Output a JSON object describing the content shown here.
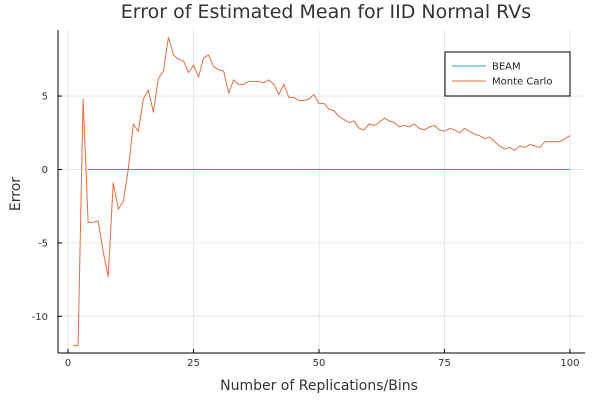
{
  "chart_data": {
    "type": "line",
    "title": "Error of Estimated Mean for IID Normal RVs",
    "xlabel": "Number of Replications/Bins",
    "ylabel": "Error",
    "xlim": [
      -2,
      103
    ],
    "ylim": [
      -12.5,
      9.5
    ],
    "xticks": [
      0,
      25,
      50,
      75,
      100
    ],
    "yticks": [
      -10,
      -5,
      0,
      5
    ],
    "grid": true,
    "legend_position": "top-right",
    "series": [
      {
        "name": "BEAM",
        "color": "#26a5b8",
        "x": [
          4,
          100
        ],
        "values": [
          0,
          0
        ]
      },
      {
        "name": "Monte Carlo",
        "color": "#e26f46",
        "x": [
          1,
          2,
          3,
          4,
          5,
          6,
          7,
          8,
          9,
          10,
          11,
          12,
          13,
          14,
          15,
          16,
          17,
          18,
          19,
          20,
          21,
          22,
          23,
          24,
          25,
          26,
          27,
          28,
          29,
          30,
          31,
          32,
          33,
          34,
          35,
          36,
          37,
          38,
          39,
          40,
          41,
          42,
          43,
          44,
          45,
          46,
          47,
          48,
          49,
          50,
          51,
          52,
          53,
          54,
          55,
          56,
          57,
          58,
          59,
          60,
          61,
          62,
          63,
          64,
          65,
          66,
          67,
          68,
          69,
          70,
          71,
          72,
          73,
          74,
          75,
          76,
          77,
          78,
          79,
          80,
          81,
          82,
          83,
          84,
          85,
          86,
          87,
          88,
          89,
          90,
          91,
          92,
          93,
          94,
          95,
          96,
          97,
          98,
          99,
          100
        ],
        "values": [
          -12,
          -12,
          4.8,
          -3.6,
          -3.6,
          -3.5,
          -5.6,
          -7.3,
          -0.9,
          -2.7,
          -2.2,
          0,
          3.1,
          2.6,
          4.8,
          5.4,
          3.9,
          6.2,
          6.7,
          9.0,
          7.8,
          7.5,
          7.4,
          6.6,
          7.1,
          6.3,
          7.6,
          7.8,
          7.0,
          6.8,
          6.7,
          5.2,
          6.1,
          5.8,
          5.8,
          6.0,
          6.0,
          6.0,
          5.9,
          6.1,
          5.8,
          5.1,
          5.8,
          4.9,
          4.9,
          4.7,
          4.7,
          4.8,
          5.1,
          4.5,
          4.5,
          4.1,
          4.0,
          3.6,
          3.4,
          3.2,
          3.3,
          2.8,
          2.7,
          3.1,
          3.0,
          3.2,
          3.5,
          3.3,
          3.2,
          2.9,
          3.0,
          2.9,
          3.1,
          2.8,
          2.7,
          2.9,
          3.0,
          2.7,
          2.6,
          2.8,
          2.7,
          2.5,
          2.8,
          2.6,
          2.4,
          2.3,
          2.1,
          2.2,
          1.9,
          1.6,
          1.4,
          1.5,
          1.3,
          1.6,
          1.5,
          1.7,
          1.6,
          1.5,
          1.9,
          1.9,
          1.9,
          1.9,
          2.1,
          2.3
        ]
      }
    ]
  }
}
